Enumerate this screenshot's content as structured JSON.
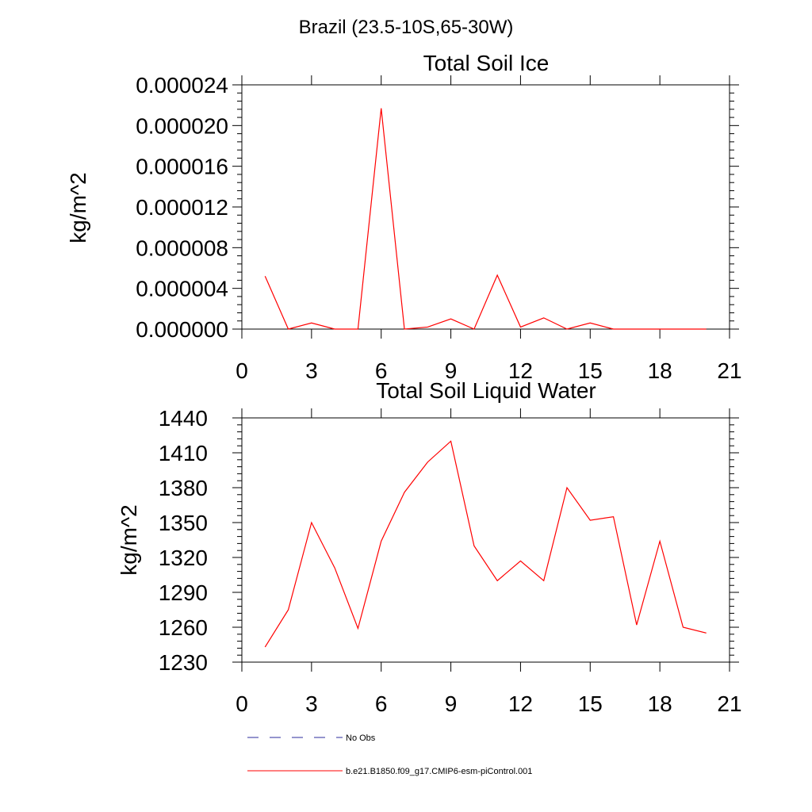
{
  "figure": {
    "title": "Brazil (23.5-10S,65-30W)"
  },
  "legend": {
    "items": [
      {
        "label": "No Obs",
        "style": "dashed",
        "color": "#2b2b9c"
      },
      {
        "label": "b.e21.B1850.f09_g17.CMIP6-esm-piControl.001",
        "style": "solid",
        "color": "#ff0000"
      }
    ]
  },
  "chart_data": [
    {
      "type": "line",
      "title": "Total Soil Ice",
      "xlabel": "",
      "ylabel": "kg/m^2",
      "xlim": [
        0,
        21
      ],
      "ylim": [
        0,
        2.4e-05
      ],
      "xticks": [
        0,
        3,
        6,
        9,
        12,
        15,
        18,
        21
      ],
      "xtick_labels": [
        "0",
        "3",
        "6",
        "9",
        "12",
        "15",
        "18",
        "21"
      ],
      "yticks": [
        0,
        4e-06,
        8e-06,
        1.2e-05,
        1.6e-05,
        2e-05,
        2.4e-05
      ],
      "ytick_labels": [
        "0.000000",
        "0.000004",
        "0.000008",
        "0.000012",
        "0.000016",
        "0.000020",
        "0.000024"
      ],
      "grid": false,
      "series": [
        {
          "name": "b.e21.B1850.f09_g17.CMIP6-esm-piControl.001",
          "color": "#ff0000",
          "x": [
            1,
            2,
            3,
            4,
            5,
            6,
            7,
            8,
            9,
            10,
            11,
            12,
            13,
            14,
            15,
            16,
            17,
            18,
            19,
            20
          ],
          "y": [
            5.2e-06,
            0.0,
            6e-07,
            0.0,
            0.0,
            2.17e-05,
            0.0,
            2e-07,
            1e-06,
            0.0,
            5.3e-06,
            2e-07,
            1.1e-06,
            0.0,
            6e-07,
            0.0,
            0.0,
            0.0,
            0.0,
            0.0
          ]
        }
      ]
    },
    {
      "type": "line",
      "title": "Total Soil Liquid Water",
      "xlabel": "",
      "ylabel": "kg/m^2",
      "xlim": [
        0,
        21
      ],
      "ylim": [
        1230,
        1440
      ],
      "xticks": [
        0,
        3,
        6,
        9,
        12,
        15,
        18,
        21
      ],
      "xtick_labels": [
        "0",
        "3",
        "6",
        "9",
        "12",
        "15",
        "18",
        "21"
      ],
      "yticks": [
        1230,
        1260,
        1290,
        1320,
        1350,
        1380,
        1410,
        1440
      ],
      "ytick_labels": [
        "1230",
        "1260",
        "1290",
        "1320",
        "1350",
        "1380",
        "1410",
        "1440"
      ],
      "grid": false,
      "series": [
        {
          "name": "b.e21.B1850.f09_g17.CMIP6-esm-piControl.001",
          "color": "#ff0000",
          "x": [
            1,
            2,
            3,
            4,
            5,
            6,
            7,
            8,
            9,
            10,
            11,
            12,
            13,
            14,
            15,
            16,
            17,
            18,
            19,
            20
          ],
          "y": [
            1243,
            1275,
            1350,
            1311,
            1259,
            1334,
            1376,
            1402,
            1420,
            1330,
            1300,
            1317,
            1300,
            1380,
            1352,
            1355,
            1262,
            1334,
            1260,
            1255
          ]
        }
      ]
    }
  ]
}
